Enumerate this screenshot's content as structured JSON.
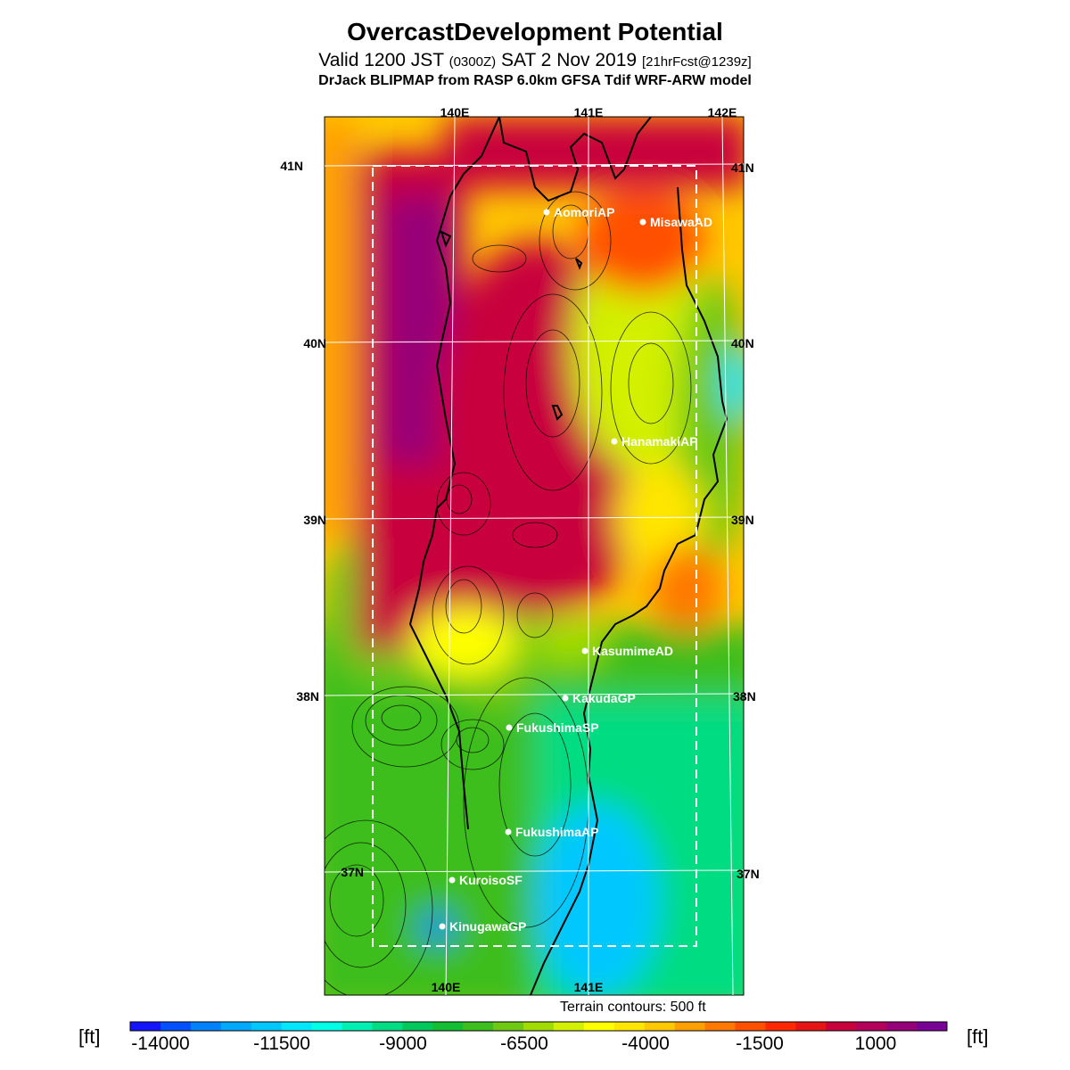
{
  "header": {
    "title": "OvercastDevelopment Potential",
    "valid_pre": "Valid 1200 JST ",
    "valid_utc": "(0300Z)",
    "valid_date": " SAT 2 Nov 2019 ",
    "forecast": "[21hrFcst@1239z]",
    "model": "DrJack BLIPMAP from RASP 6.0km GFSA Tdif WRF-ARW model"
  },
  "map": {
    "lon_labels_top": [
      "140E",
      "141E",
      "142E"
    ],
    "lon_labels_bottom": [
      "140E",
      "141E"
    ],
    "lat_labels_left": [
      "41N",
      "40N",
      "39N",
      "38N",
      "37N"
    ],
    "lat_labels_right": [
      "41N",
      "40N",
      "39N",
      "38N",
      "37N"
    ],
    "sites": [
      {
        "name": "AomoriAP"
      },
      {
        "name": "MisawaAD"
      },
      {
        "name": "HanamakiAP"
      },
      {
        "name": "KasumimeAD"
      },
      {
        "name": "KakudaGP"
      },
      {
        "name": "FukushimaSP"
      },
      {
        "name": "FukushimaAP"
      },
      {
        "name": "KuroisoSF"
      },
      {
        "name": "KinugawaGP"
      }
    ],
    "terrain_note": "Terrain contours: 500 ft"
  },
  "colorbar": {
    "unit_left": "[ft]",
    "unit_right": "[ft]",
    "labels": [
      "-14000",
      "-11500",
      "-9000",
      "-6500",
      "-4000",
      "-1500",
      "1000"
    ],
    "colors": [
      "#1414ff",
      "#0050ff",
      "#0082ff",
      "#00a8ff",
      "#00c8ff",
      "#00e6ff",
      "#00ffe6",
      "#00f0b4",
      "#00dc82",
      "#00c85a",
      "#14be32",
      "#3cbe1e",
      "#6ec814",
      "#a0dc00",
      "#d2f000",
      "#ffff00",
      "#ffe600",
      "#ffc800",
      "#ffa000",
      "#ff7800",
      "#ff5000",
      "#ff2800",
      "#e61414",
      "#c8003c",
      "#b4005a",
      "#960078",
      "#780096"
    ]
  }
}
